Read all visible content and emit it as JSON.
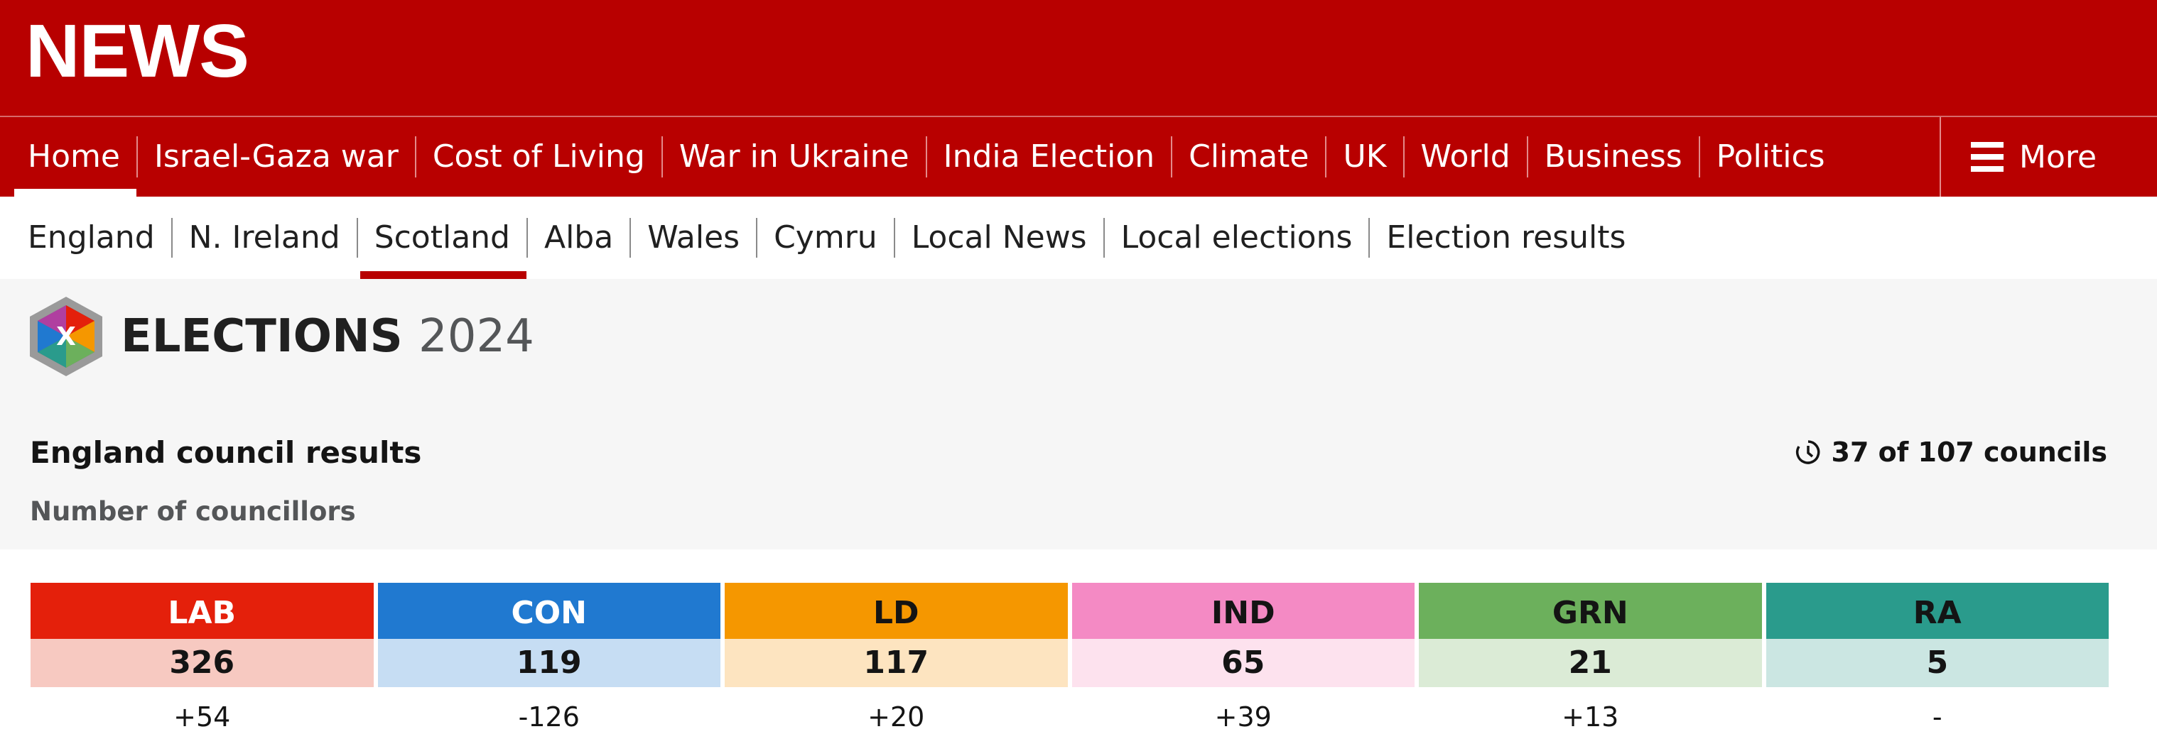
{
  "header": {
    "brand": "NEWS",
    "nav": [
      "Home",
      "Israel-Gaza war",
      "Cost of Living",
      "War in Ukraine",
      "India Election",
      "Climate",
      "UK",
      "World",
      "Business",
      "Politics"
    ],
    "more": "More",
    "subnav": [
      "England",
      "N. Ireland",
      "Scotland",
      "Alba",
      "Wales",
      "Cymru",
      "Local News",
      "Local elections",
      "Election results"
    ]
  },
  "elections": {
    "name": "ELECTIONS",
    "year": "2024"
  },
  "results": {
    "title": "England council results",
    "progress": "37 of 107 councils",
    "subtitle": "Number of councillors",
    "parties": [
      {
        "name": "LAB",
        "seats": 326,
        "change": "+54"
      },
      {
        "name": "CON",
        "seats": 119,
        "change": "-126"
      },
      {
        "name": "LD",
        "seats": 117,
        "change": "+20"
      },
      {
        "name": "IND",
        "seats": 65,
        "change": "+39"
      },
      {
        "name": "GRN",
        "seats": 21,
        "change": "+13"
      },
      {
        "name": "RA",
        "seats": 5,
        "change": "-"
      }
    ]
  }
}
